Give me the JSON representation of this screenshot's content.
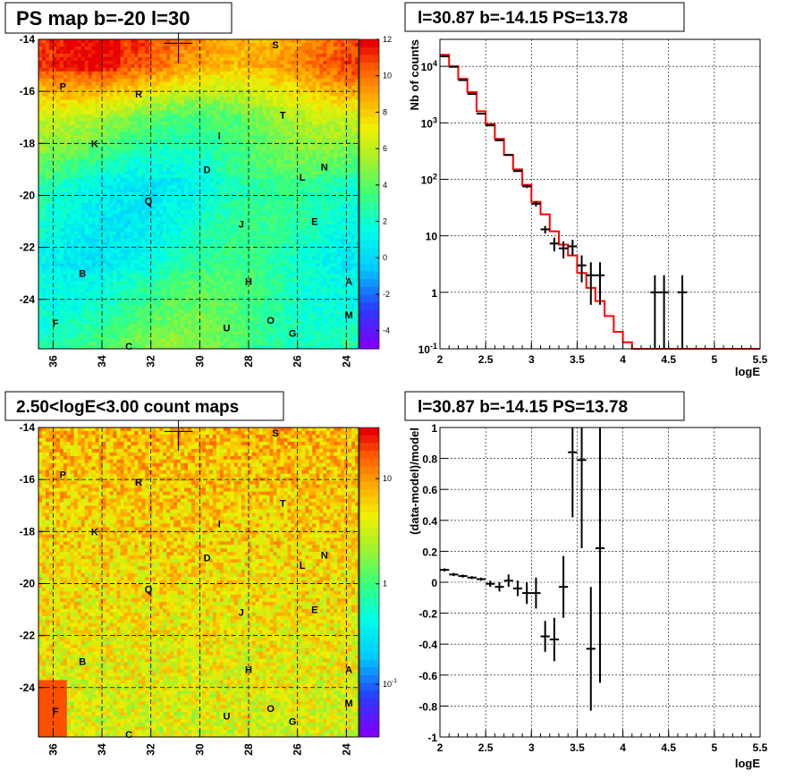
{
  "chart_data": [
    {
      "type": "heatmap",
      "title": "PS map b=-20 l=30",
      "x_ticks": [
        "36",
        "34",
        "32",
        "30",
        "28",
        "26",
        "24"
      ],
      "y_ticks": [
        "-14",
        "-16",
        "-18",
        "-20",
        "-22",
        "-24"
      ],
      "xlim": [
        36.6,
        23.5
      ],
      "ylim": [
        -25.9,
        -14
      ],
      "colorbar_ticks": [
        "12",
        "10",
        "8",
        "6",
        "4",
        "2",
        "0",
        "-2",
        "-4"
      ],
      "colorbar_range": [
        -5,
        12
      ],
      "grid": true,
      "marker": {
        "l": 30.87,
        "b": -14.15
      },
      "sources": [
        {
          "label": "S",
          "l": 26.9,
          "b": -14.2
        },
        {
          "label": "P",
          "l": 35.6,
          "b": -15.8
        },
        {
          "label": "R",
          "l": 32.5,
          "b": -16.1
        },
        {
          "label": "T",
          "l": 26.6,
          "b": -16.9
        },
        {
          "label": "I",
          "l": 29.2,
          "b": -17.7
        },
        {
          "label": "K",
          "l": 34.3,
          "b": -18.0
        },
        {
          "label": "D",
          "l": 29.7,
          "b": -19.0
        },
        {
          "label": "N",
          "l": 24.9,
          "b": -18.9
        },
        {
          "label": "L",
          "l": 25.8,
          "b": -19.3
        },
        {
          "label": "Q",
          "l": 32.1,
          "b": -20.2
        },
        {
          "label": "J",
          "l": 28.3,
          "b": -21.1
        },
        {
          "label": "E",
          "l": 25.3,
          "b": -21.0
        },
        {
          "label": "B",
          "l": 34.8,
          "b": -23.0
        },
        {
          "label": "H",
          "l": 28.0,
          "b": -23.3
        },
        {
          "label": "A",
          "l": 23.9,
          "b": -23.3
        },
        {
          "label": "M",
          "l": 23.9,
          "b": -24.6
        },
        {
          "label": "F",
          "l": 35.9,
          "b": -24.9
        },
        {
          "label": "O",
          "l": 27.1,
          "b": -24.8
        },
        {
          "label": "U",
          "l": 28.9,
          "b": -25.1
        },
        {
          "label": "G",
          "l": 26.2,
          "b": -25.3
        },
        {
          "label": "C",
          "l": 32.9,
          "b": -25.8
        }
      ]
    },
    {
      "type": "line",
      "title": "l=30.87 b=-14.15 PS=13.78",
      "xlabel": "logE",
      "ylabel": "Nb of counts",
      "x_ticks": [
        "2",
        "2.5",
        "3",
        "3.5",
        "4",
        "4.5",
        "5",
        "5.5"
      ],
      "y_ticks": [
        "10^{-1}",
        "1",
        "10",
        "10^{2}",
        "10^{3}",
        "10^{4}"
      ],
      "xlim": [
        2,
        5.5
      ],
      "ylim": [
        0.1,
        30000
      ],
      "y_scale": "log",
      "grid": true,
      "model_line_color": "#ff0000",
      "model_bin_edges": [
        2.0,
        2.1,
        2.2,
        2.3,
        2.4,
        2.5,
        2.6,
        2.7,
        2.8,
        2.9,
        3.0,
        3.1,
        3.2,
        3.3,
        3.4,
        3.5,
        3.6,
        3.7,
        3.8,
        3.9,
        4.0,
        4.1,
        4.2,
        5.5
      ],
      "model_values": [
        16000,
        10000,
        6000,
        3500,
        1600,
        950,
        520,
        270,
        150,
        80,
        40,
        24,
        12,
        7,
        4.5,
        2.2,
        1.2,
        0.7,
        0.38,
        0.2,
        0.13,
        0.1,
        0.1
      ],
      "data_points": [
        {
          "x": 2.05,
          "y": 15000,
          "err": 0
        },
        {
          "x": 2.15,
          "y": 9800,
          "err": 0
        },
        {
          "x": 2.25,
          "y": 5700,
          "err": 0
        },
        {
          "x": 2.35,
          "y": 3250,
          "err": 0
        },
        {
          "x": 2.45,
          "y": 1450,
          "err": 0
        },
        {
          "x": 2.55,
          "y": 900,
          "err": 0
        },
        {
          "x": 2.65,
          "y": 490,
          "err": 0
        },
        {
          "x": 2.75,
          "y": 270,
          "err": 0
        },
        {
          "x": 2.85,
          "y": 140,
          "err": 0
        },
        {
          "x": 2.95,
          "y": 75,
          "err": 5
        },
        {
          "x": 3.05,
          "y": 37,
          "err": 4
        },
        {
          "x": 3.15,
          "y": 13,
          "err": 2
        },
        {
          "x": 3.25,
          "y": 7.3,
          "err": 2
        },
        {
          "x": 3.35,
          "y": 6.0,
          "err": 2
        },
        {
          "x": 3.45,
          "y": 6.5,
          "err": 2
        },
        {
          "x": 3.55,
          "y": 3.0,
          "err": 1.5
        },
        {
          "x": 3.65,
          "y": 2.0,
          "err": 1.4
        },
        {
          "x": 3.75,
          "y": 2.0,
          "err": 1.4
        },
        {
          "x": 4.35,
          "y": 1.0,
          "err": 1.0
        },
        {
          "x": 4.45,
          "y": 1.0,
          "err": 1.0
        },
        {
          "x": 4.65,
          "y": 1.0,
          "err": 1.0
        }
      ]
    },
    {
      "type": "heatmap",
      "title": "2.50<logE<3.00 count maps",
      "x_ticks": [
        "36",
        "34",
        "32",
        "30",
        "28",
        "26",
        "24"
      ],
      "y_ticks": [
        "-14",
        "-16",
        "-18",
        "-20",
        "-22",
        "-24"
      ],
      "xlim": [
        36.6,
        23.5
      ],
      "ylim": [
        -25.9,
        -14
      ],
      "colorbar_ticks": [
        "10",
        "1",
        "10^{-1}"
      ],
      "colorbar_scale": "log",
      "grid": true,
      "marker": {
        "l": 30.87,
        "b": -14.15
      },
      "sources": [
        {
          "label": "S",
          "l": 26.9,
          "b": -14.2
        },
        {
          "label": "P",
          "l": 35.6,
          "b": -15.8
        },
        {
          "label": "R",
          "l": 32.5,
          "b": -16.1
        },
        {
          "label": "T",
          "l": 26.6,
          "b": -16.9
        },
        {
          "label": "I",
          "l": 29.2,
          "b": -17.7
        },
        {
          "label": "K",
          "l": 34.3,
          "b": -18.0
        },
        {
          "label": "D",
          "l": 29.7,
          "b": -19.0
        },
        {
          "label": "N",
          "l": 24.9,
          "b": -18.9
        },
        {
          "label": "L",
          "l": 25.8,
          "b": -19.3
        },
        {
          "label": "Q",
          "l": 32.1,
          "b": -20.2
        },
        {
          "label": "J",
          "l": 28.3,
          "b": -21.1
        },
        {
          "label": "E",
          "l": 25.3,
          "b": -21.0
        },
        {
          "label": "B",
          "l": 34.8,
          "b": -23.0
        },
        {
          "label": "H",
          "l": 28.0,
          "b": -23.3
        },
        {
          "label": "A",
          "l": 23.9,
          "b": -23.3
        },
        {
          "label": "M",
          "l": 23.9,
          "b": -24.6
        },
        {
          "label": "F",
          "l": 35.9,
          "b": -24.9
        },
        {
          "label": "O",
          "l": 27.1,
          "b": -24.8
        },
        {
          "label": "U",
          "l": 28.9,
          "b": -25.1
        },
        {
          "label": "G",
          "l": 26.2,
          "b": -25.3
        },
        {
          "label": "C",
          "l": 32.9,
          "b": -25.8
        }
      ]
    },
    {
      "type": "scatter",
      "title": "l=30.87 b=-14.15 PS=13.78",
      "xlabel": "logE",
      "ylabel": "(data-model)/model",
      "x_ticks": [
        "2",
        "2.5",
        "3",
        "3.5",
        "4",
        "4.5",
        "5",
        "5.5"
      ],
      "y_ticks": [
        "-1",
        "-0.8",
        "-0.6",
        "-0.4",
        "-0.2",
        "0",
        "0.2",
        "0.4",
        "0.6",
        "0.8",
        "1"
      ],
      "xlim": [
        2,
        5.5
      ],
      "ylim": [
        -1,
        1
      ],
      "grid": true,
      "data_points": [
        {
          "x": 2.05,
          "y": 0.08,
          "err": 0.01
        },
        {
          "x": 2.15,
          "y": 0.05,
          "err": 0.01
        },
        {
          "x": 2.25,
          "y": 0.04,
          "err": 0.01
        },
        {
          "x": 2.35,
          "y": 0.03,
          "err": 0.01
        },
        {
          "x": 2.45,
          "y": 0.02,
          "err": 0.01
        },
        {
          "x": 2.55,
          "y": -0.01,
          "err": 0.02
        },
        {
          "x": 2.65,
          "y": -0.03,
          "err": 0.03
        },
        {
          "x": 2.75,
          "y": 0.01,
          "err": 0.04
        },
        {
          "x": 2.85,
          "y": -0.04,
          "err": 0.05
        },
        {
          "x": 2.95,
          "y": -0.07,
          "err": 0.07
        },
        {
          "x": 3.05,
          "y": -0.07,
          "err": 0.1
        },
        {
          "x": 3.15,
          "y": -0.35,
          "err": 0.1
        },
        {
          "x": 3.25,
          "y": -0.37,
          "err": 0.14
        },
        {
          "x": 3.35,
          "y": -0.03,
          "err": 0.2
        },
        {
          "x": 3.45,
          "y": 0.84,
          "err": 0.42
        },
        {
          "x": 3.55,
          "y": 0.79,
          "err": 0.57
        },
        {
          "x": 3.65,
          "y": -0.43,
          "err": 0.4
        },
        {
          "x": 3.75,
          "y": 0.22,
          "err": 0.87
        }
      ]
    }
  ]
}
